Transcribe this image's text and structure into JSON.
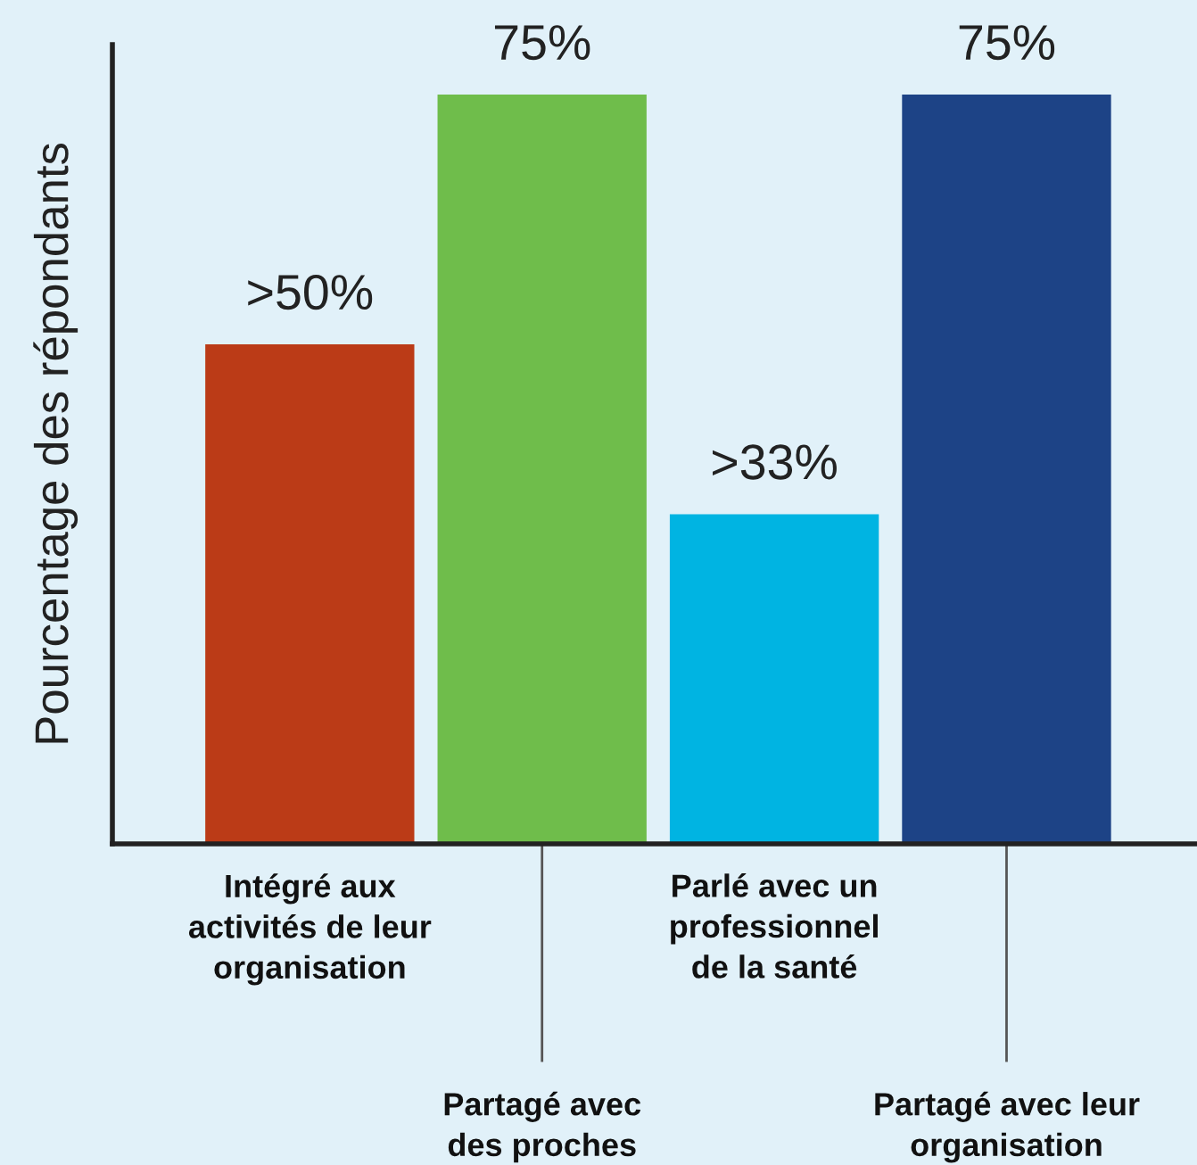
{
  "chart_data": {
    "type": "bar",
    "ylabel": "Pourcentage des répondants",
    "categories": [
      "Intégré aux\nactivités de leur\norganisation",
      "Partagé avec\ndes proches",
      "Parlé avec un\nprofessionnel\nde la santé",
      "Partagé avec leur\norganisation"
    ],
    "values": [
      50,
      75,
      33,
      75
    ],
    "colors": [
      "#bb3b17",
      "#6fbd4b",
      "#00b4e2",
      "#1d4386"
    ],
    "value_labels": [
      ">50%",
      "75%",
      ">33%",
      "75%"
    ],
    "ylim": [
      0,
      80
    ],
    "tick_labels": "x"
  }
}
